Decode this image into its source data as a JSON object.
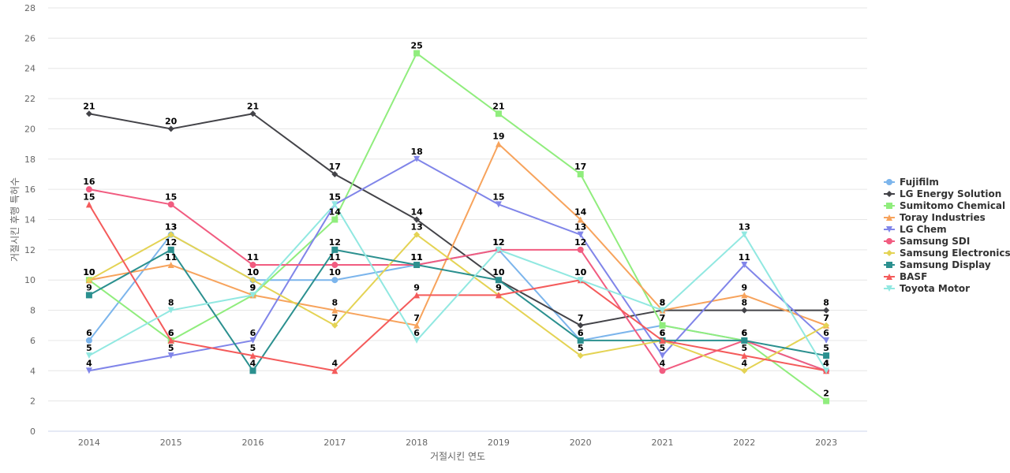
{
  "chart_data": {
    "type": "line",
    "title": "",
    "xlabel": "거절시킨 연도",
    "ylabel": "거절시킨 후행 특허수",
    "categories": [
      "2014",
      "2015",
      "2016",
      "2017",
      "2018",
      "2019",
      "2020",
      "2021",
      "2022",
      "2023"
    ],
    "ylim": [
      0,
      28
    ],
    "yticks": [
      0,
      2,
      4,
      6,
      8,
      10,
      12,
      14,
      16,
      18,
      20,
      22,
      24,
      26,
      28
    ],
    "grid": true,
    "legend_position": "right",
    "series": [
      {
        "name": "Fujifilm",
        "color": "#7cb5ec",
        "marker": "circle",
        "values": [
          6,
          13,
          10,
          10,
          11,
          12,
          6,
          7,
          6,
          4
        ]
      },
      {
        "name": "LG Energy Solution",
        "color": "#434348",
        "marker": "diamond",
        "values": [
          21,
          20,
          21,
          17,
          14,
          10,
          7,
          8,
          8,
          8
        ]
      },
      {
        "name": "Sumitomo Chemical",
        "color": "#90ed7d",
        "marker": "square",
        "values": [
          10,
          6,
          9,
          14,
          25,
          21,
          17,
          7,
          6,
          2
        ]
      },
      {
        "name": "Toray Industries",
        "color": "#f7a35c",
        "marker": "triangle",
        "values": [
          10,
          11,
          9,
          8,
          7,
          19,
          14,
          8,
          9,
          7
        ]
      },
      {
        "name": "LG Chem",
        "color": "#8085e9",
        "marker": "triangle-down",
        "values": [
          4,
          5,
          6,
          15,
          18,
          15,
          13,
          5,
          11,
          6
        ]
      },
      {
        "name": "Samsung SDI",
        "color": "#f15c80",
        "marker": "circle",
        "values": [
          16,
          15,
          11,
          11,
          11,
          12,
          12,
          4,
          6,
          4
        ]
      },
      {
        "name": "Samsung Electronics",
        "color": "#e4d354",
        "marker": "diamond",
        "values": [
          10,
          13,
          10,
          7,
          13,
          9,
          5,
          6,
          4,
          7
        ]
      },
      {
        "name": "Samsung Display",
        "color": "#2b908f",
        "marker": "square",
        "values": [
          9,
          12,
          4,
          12,
          11,
          10,
          6,
          6,
          6,
          5
        ]
      },
      {
        "name": "BASF",
        "color": "#f45b5b",
        "marker": "triangle",
        "values": [
          15,
          6,
          5,
          4,
          9,
          9,
          10,
          6,
          5,
          4
        ]
      },
      {
        "name": "Toyota Motor",
        "color": "#91e8e1",
        "marker": "triangle-down",
        "values": [
          5,
          8,
          9,
          15,
          6,
          12,
          10,
          8,
          13,
          4
        ]
      }
    ]
  }
}
